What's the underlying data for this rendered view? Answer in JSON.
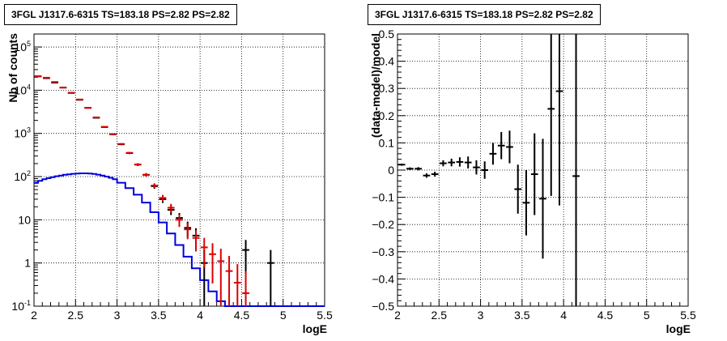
{
  "chart_data": [
    {
      "type": "histogram",
      "title": "3FGL J1317.6-6315 TS=183.18 PS=2.82 PS=2.82",
      "xlabel": "logE",
      "ylabel": "Nb of counts",
      "xlim": [
        2,
        5.5
      ],
      "ylim": [
        0.1,
        200000
      ],
      "yscale": "log",
      "grid": true,
      "x_ticks": [
        "2",
        "2.5",
        "3",
        "3.5",
        "4",
        "4.5",
        "5",
        "5.5"
      ],
      "y_ticks": [
        "10^-1",
        "1",
        "10",
        "10^2",
        "10^3",
        "10^4",
        "10^5"
      ],
      "series": [
        {
          "style": "points-with-error-bars",
          "color": "#000000",
          "x": [
            2.05,
            2.15,
            2.25,
            2.35,
            2.45,
            2.55,
            2.65,
            2.75,
            2.85,
            2.95,
            3.05,
            3.15,
            3.25,
            3.35,
            3.45,
            3.55,
            3.65,
            3.75,
            3.85,
            3.95,
            4.05,
            4.55,
            4.85
          ],
          "y": [
            21000,
            19000,
            15000,
            11500,
            8700,
            6000,
            3900,
            2300,
            1400,
            950,
            560,
            350,
            190,
            110,
            60,
            30,
            17,
            11,
            6.5,
            4.3,
            1.0,
            2.0,
            1.0
          ]
        },
        {
          "style": "points-with-error-bars",
          "color": "#dd0000",
          "x": [
            2.05,
            2.15,
            2.25,
            2.35,
            2.45,
            2.55,
            2.65,
            2.75,
            2.85,
            2.95,
            3.05,
            3.15,
            3.25,
            3.35,
            3.45,
            3.55,
            3.65,
            3.75,
            3.85,
            3.95,
            4.05,
            4.15,
            4.25,
            4.35,
            4.45,
            4.55
          ],
          "y": [
            21000,
            19500,
            15500,
            11500,
            8600,
            6100,
            3900,
            2350,
            1420,
            960,
            570,
            355,
            190,
            110,
            62,
            32,
            19,
            10,
            6,
            3.8,
            2.3,
            1.6,
            1.1,
            0.65,
            0.35,
            0.2
          ]
        },
        {
          "style": "step-line",
          "color": "#0000dd",
          "x_edges": [
            2.0,
            2.05,
            2.1,
            2.15,
            2.2,
            2.25,
            2.3,
            2.35,
            2.4,
            2.45,
            2.5,
            2.55,
            2.6,
            2.65,
            2.7,
            2.75,
            2.8,
            2.85,
            2.9,
            2.95,
            3.0,
            3.1,
            3.2,
            3.3,
            3.4,
            3.5,
            3.6,
            3.7,
            3.8,
            3.9,
            4.0,
            4.1,
            4.2,
            4.3,
            4.4,
            4.5,
            4.6,
            5.5
          ],
          "y": [
            72,
            80,
            87,
            92,
            97,
            102,
            106,
            110,
            113,
            116,
            118,
            119,
            119,
            118,
            115,
            111,
            106,
            100,
            94,
            87,
            72,
            54,
            38,
            25,
            15,
            8.7,
            4.8,
            2.6,
            1.4,
            0.75,
            0.4,
            0.22,
            0.13,
            0.1,
            0.1,
            0.1,
            0.1
          ]
        }
      ]
    },
    {
      "type": "scatter",
      "title": "3FGL J1317.6-6315 TS=183.18 PS=2.82 PS=2.82",
      "xlabel": "logE",
      "ylabel": "(data-model)/model",
      "xlim": [
        2,
        5.5
      ],
      "ylim": [
        -0.5,
        0.5
      ],
      "grid": true,
      "x_ticks": [
        "2",
        "2.5",
        "3",
        "3.5",
        "4",
        "4.5",
        "5",
        "5.5"
      ],
      "y_ticks": [
        "−0.5",
        "−0.4",
        "−0.3",
        "−0.2",
        "−0.1",
        "0",
        "0.1",
        "0.2",
        "0.3",
        "0.4",
        "0.5"
      ],
      "series": [
        {
          "style": "points-with-error-bars",
          "color": "#000000",
          "x": [
            2.05,
            2.15,
            2.25,
            2.35,
            2.45,
            2.55,
            2.65,
            2.75,
            2.85,
            2.95,
            3.05,
            3.15,
            3.25,
            3.35,
            3.45,
            3.55,
            3.65,
            3.75,
            3.85,
            3.95,
            4.15
          ],
          "y": [
            0.02,
            0.005,
            0.005,
            -0.02,
            -0.015,
            0.025,
            0.028,
            0.03,
            0.028,
            0.01,
            0.0,
            0.06,
            0.09,
            0.085,
            -0.07,
            -0.12,
            -0.015,
            -0.105,
            0.225,
            0.29,
            -0.022
          ],
          "err": [
            0.004,
            0.005,
            0.006,
            0.008,
            0.009,
            0.011,
            0.014,
            0.017,
            0.022,
            0.026,
            0.032,
            0.04,
            0.05,
            0.06,
            0.09,
            0.12,
            0.15,
            0.22,
            0.32,
            0.42,
            1.2
          ]
        }
      ]
    }
  ]
}
